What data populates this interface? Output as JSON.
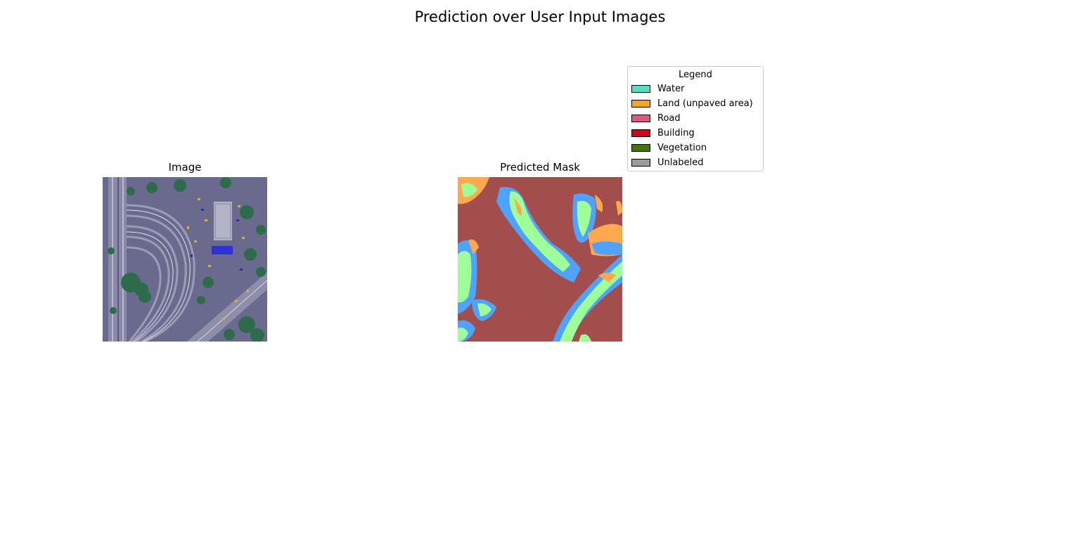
{
  "figure": {
    "suptitle": "Prediction over User Input Images",
    "panels": [
      {
        "title": "Image"
      },
      {
        "title": "Predicted Mask"
      }
    ]
  },
  "legend": {
    "title": "Legend",
    "items": [
      {
        "label": "Water",
        "color": "#50E3C2"
      },
      {
        "label": "Land (unpaved area)",
        "color": "#F5A623"
      },
      {
        "label": "Road",
        "color": "#DE597F"
      },
      {
        "label": "Building",
        "color": "#D0021B"
      },
      {
        "label": "Vegetation",
        "color": "#417505"
      },
      {
        "label": "Unlabeled",
        "color": "#9B9B9B"
      }
    ]
  },
  "mask_colors": {
    "background": "#A34E4C",
    "blue": "#4DA3FF",
    "green": "#9EFF99",
    "orange": "#FFA84D"
  }
}
